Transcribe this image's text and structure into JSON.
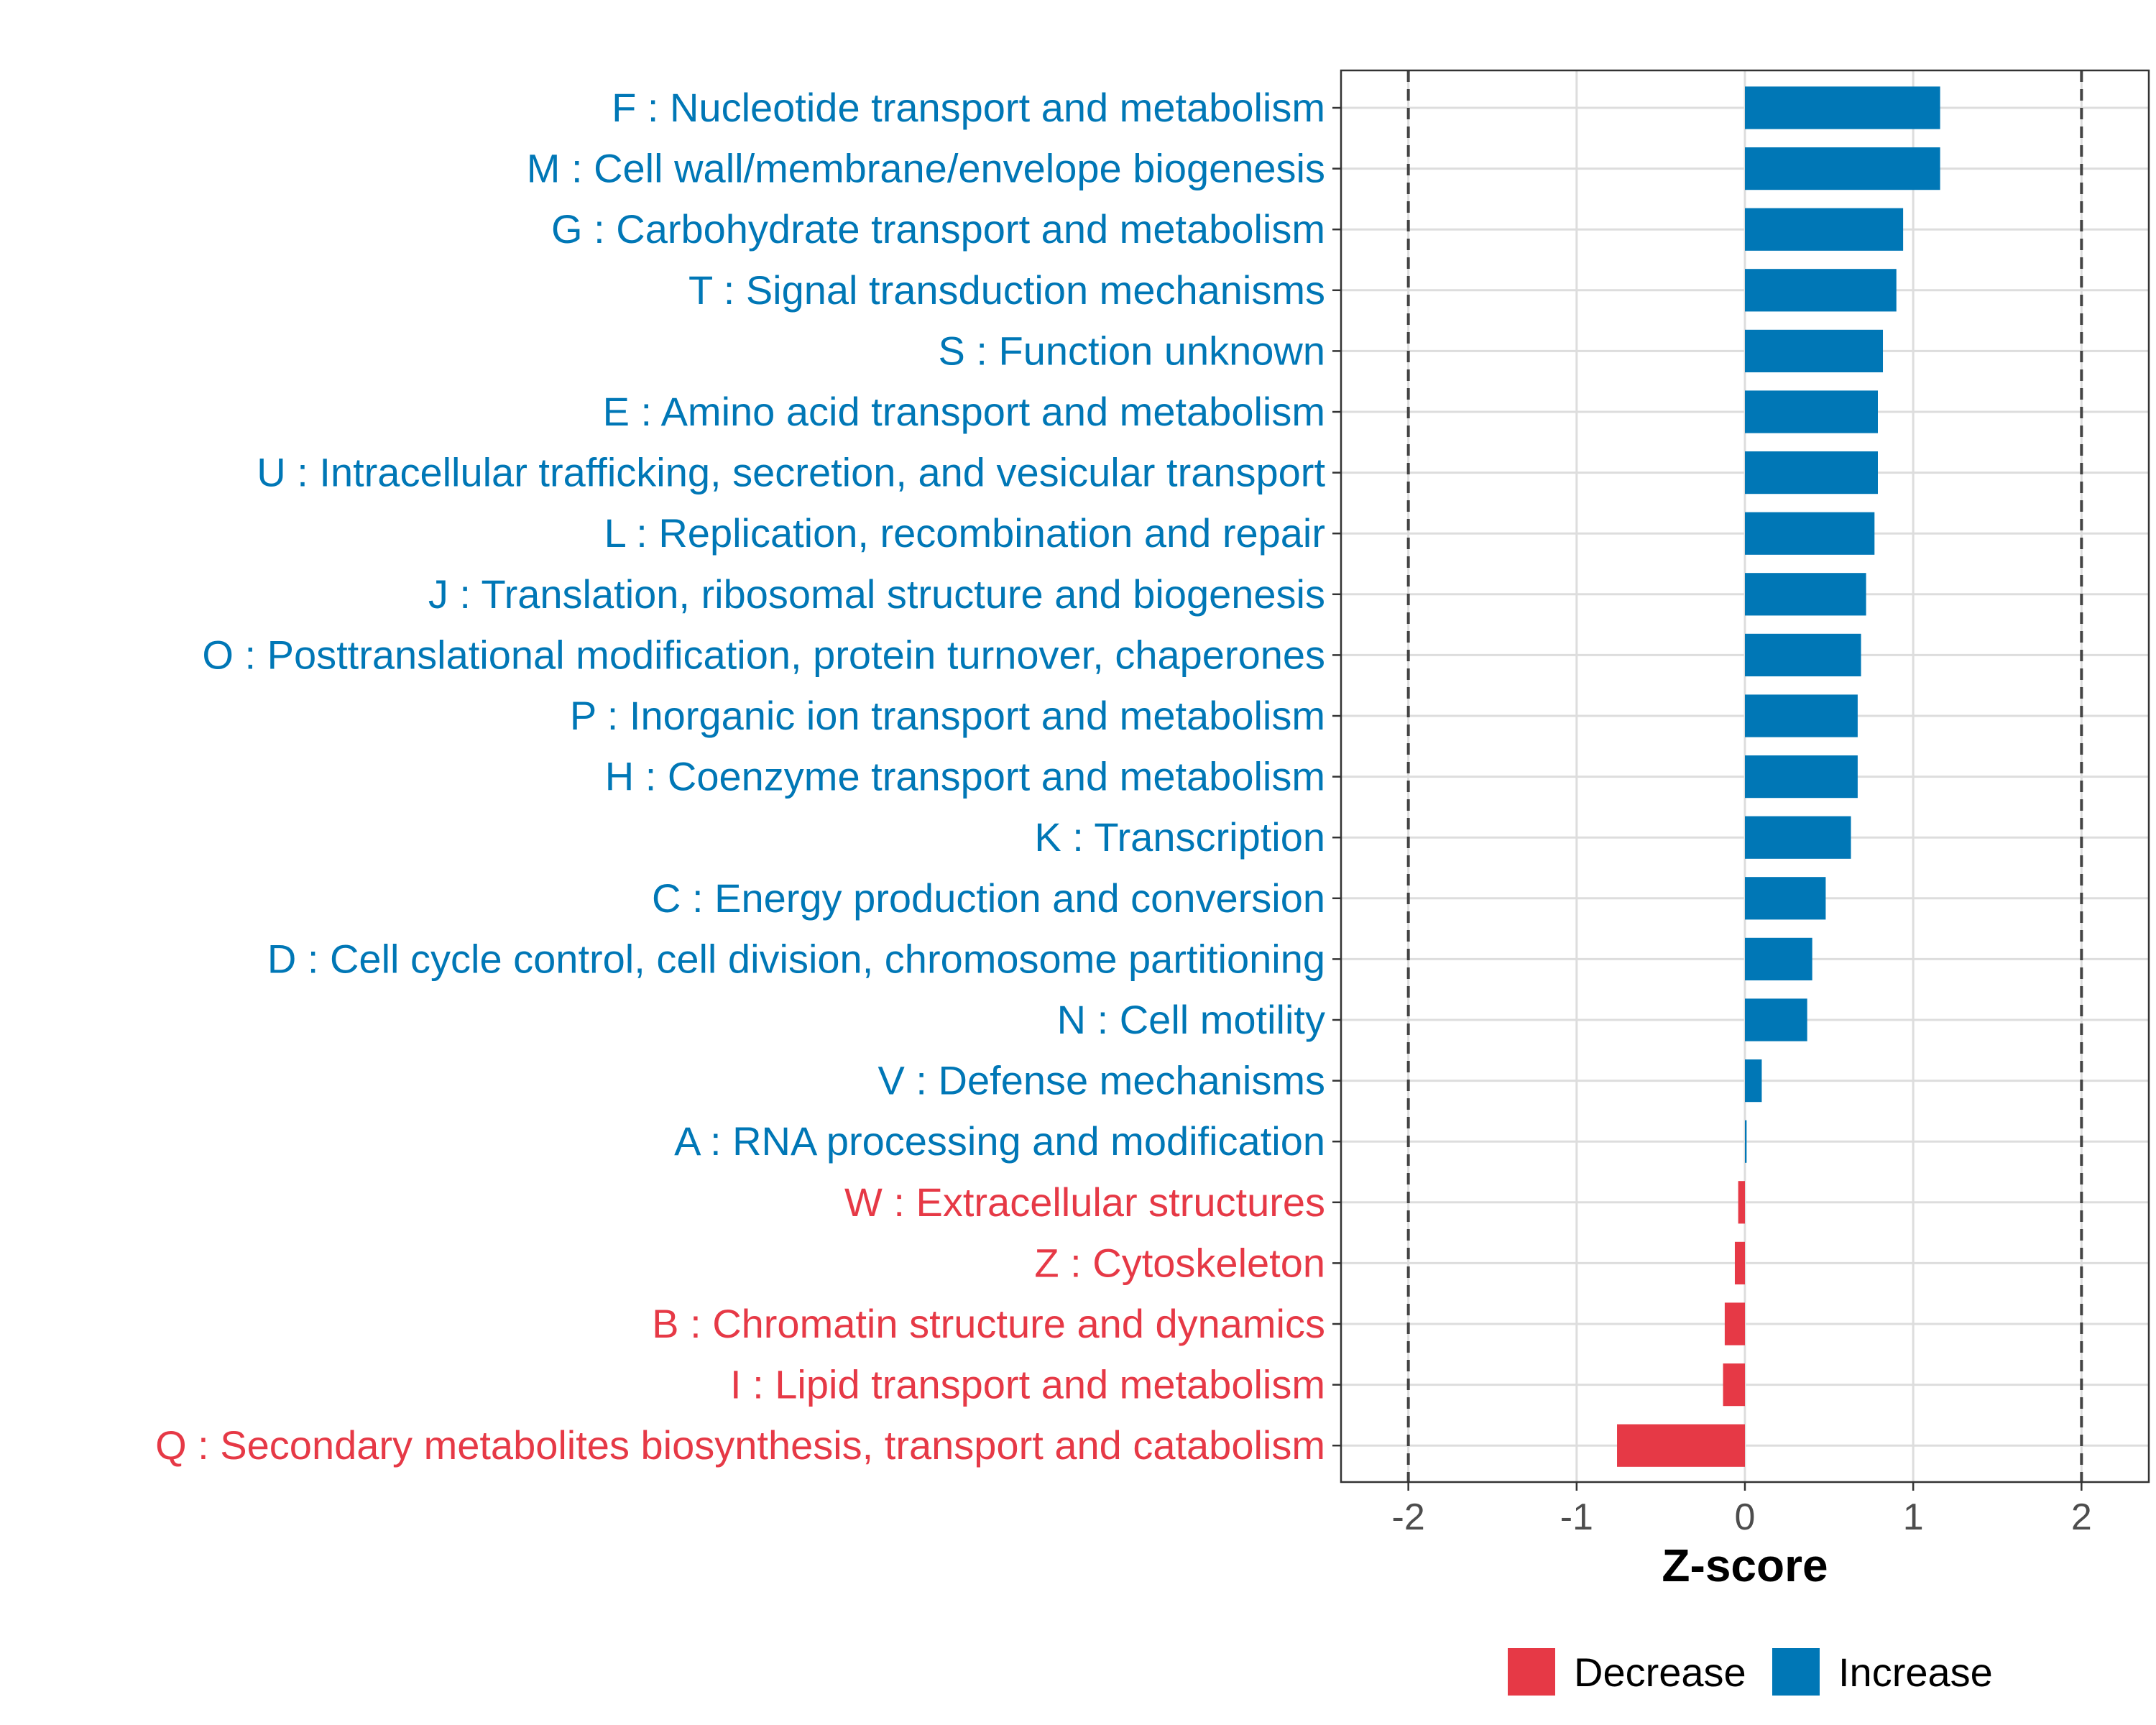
{
  "chart_data": {
    "type": "bar",
    "orientation": "horizontal",
    "title": "",
    "xlabel": "Z-score",
    "ylabel": "",
    "xlim": [
      -2.4,
      2.4
    ],
    "xticks": [
      -2,
      -1,
      0,
      1,
      2
    ],
    "xtick_labels": [
      "-2",
      "-1",
      "0",
      "1",
      "2"
    ],
    "reference_lines": [
      -2,
      2
    ],
    "grid": true,
    "colors": {
      "Decrease": "#e63946",
      "Increase": "#0077b6"
    },
    "categories": [
      "F : Nucleotide transport and metabolism",
      "M : Cell wall/membrane/envelope biogenesis",
      "G : Carbohydrate transport and metabolism",
      "T : Signal transduction mechanisms",
      "S : Function unknown",
      "E : Amino acid transport and metabolism",
      "U : Intracellular trafficking, secretion, and vesicular transport",
      "L : Replication, recombination and repair",
      "J : Translation, ribosomal structure and biogenesis",
      "O : Posttranslational modification, protein turnover, chaperones",
      "P : Inorganic ion transport and metabolism",
      "H : Coenzyme transport and metabolism",
      "K : Transcription",
      "C : Energy production and conversion",
      "D : Cell cycle control, cell division, chromosome partitioning",
      "N : Cell motility",
      "V : Defense mechanisms",
      "A : RNA processing and modification",
      "W : Extracellular structures",
      "Z : Cytoskeleton",
      "B : Chromatin structure and dynamics",
      "I : Lipid transport and metabolism",
      "Q : Secondary metabolites biosynthesis, transport and catabolism"
    ],
    "values": [
      1.16,
      1.16,
      0.94,
      0.9,
      0.82,
      0.79,
      0.79,
      0.77,
      0.72,
      0.69,
      0.67,
      0.67,
      0.63,
      0.48,
      0.4,
      0.37,
      0.1,
      0.01,
      -0.04,
      -0.06,
      -0.12,
      -0.13,
      -0.76
    ],
    "groups": [
      "Increase",
      "Increase",
      "Increase",
      "Increase",
      "Increase",
      "Increase",
      "Increase",
      "Increase",
      "Increase",
      "Increase",
      "Increase",
      "Increase",
      "Increase",
      "Increase",
      "Increase",
      "Increase",
      "Increase",
      "Increase",
      "Decrease",
      "Decrease",
      "Decrease",
      "Decrease",
      "Decrease"
    ],
    "legend": {
      "placement": "bottom",
      "entries": [
        {
          "label": "Decrease",
          "color": "#e63946"
        },
        {
          "label": "Increase",
          "color": "#0077b6"
        }
      ]
    }
  }
}
